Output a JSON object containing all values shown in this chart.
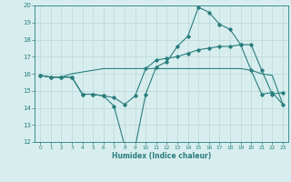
{
  "xlabel": "Humidex (Indice chaleur)",
  "x": [
    0,
    1,
    2,
    3,
    4,
    5,
    6,
    7,
    8,
    9,
    10,
    11,
    12,
    13,
    14,
    15,
    16,
    17,
    18,
    19,
    20,
    21,
    22,
    23
  ],
  "line1": [
    15.9,
    15.8,
    15.8,
    15.8,
    14.8,
    14.8,
    14.7,
    14.1,
    11.8,
    11.7,
    14.8,
    16.4,
    16.7,
    17.6,
    18.2,
    19.9,
    19.6,
    18.9,
    18.6,
    17.7,
    16.2,
    14.8,
    14.9,
    14.2
  ],
  "line2": [
    15.9,
    15.8,
    15.8,
    15.8,
    14.8,
    14.8,
    14.7,
    14.6,
    14.2,
    14.7,
    16.3,
    16.8,
    16.9,
    17.0,
    17.2,
    17.4,
    17.5,
    17.6,
    17.6,
    17.7,
    17.7,
    16.2,
    14.8,
    14.9
  ],
  "line3": [
    15.9,
    15.8,
    15.8,
    16.0,
    16.1,
    16.2,
    16.3,
    16.3,
    16.3,
    16.3,
    16.3,
    16.3,
    16.3,
    16.3,
    16.3,
    16.3,
    16.3,
    16.3,
    16.3,
    16.3,
    16.2,
    16.0,
    15.9,
    14.2
  ],
  "line_color": "#2a7d7d",
  "bg_color": "#d8eeee",
  "grid_color": "#b8d8d8",
  "ylim": [
    12,
    20
  ],
  "xlim": [
    -0.5,
    23.5
  ],
  "yticks": [
    12,
    13,
    14,
    15,
    16,
    17,
    18,
    19,
    20
  ],
  "xticks": [
    0,
    1,
    2,
    3,
    4,
    5,
    6,
    7,
    8,
    9,
    10,
    11,
    12,
    13,
    14,
    15,
    16,
    17,
    18,
    19,
    20,
    21,
    22,
    23
  ]
}
